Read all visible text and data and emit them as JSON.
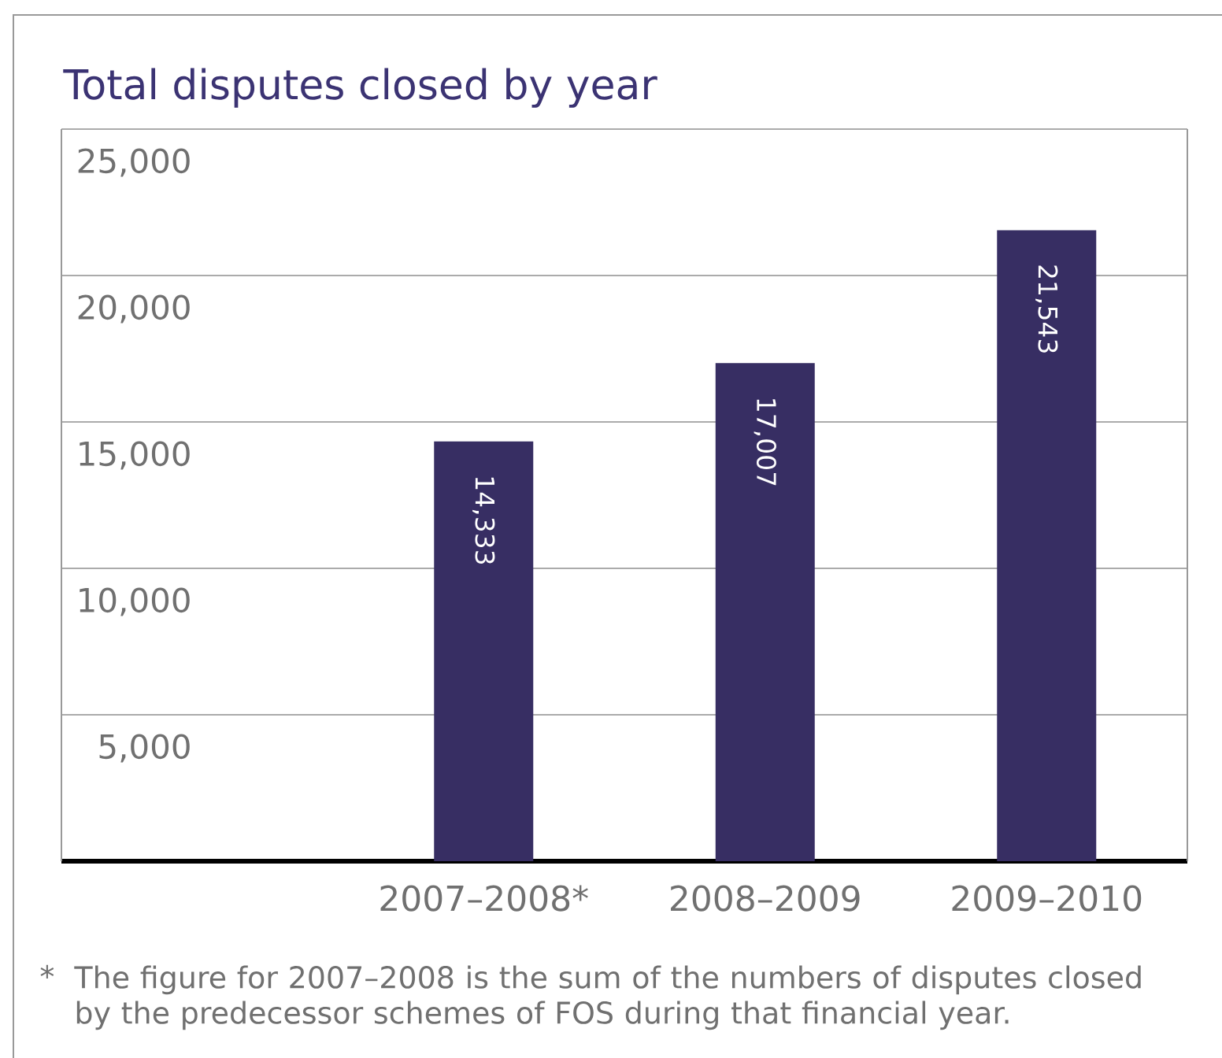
{
  "chart_data": {
    "type": "bar",
    "title": "Total disputes closed by year",
    "categories": [
      "2007–2008*",
      "2008–2009",
      "2009–2010"
    ],
    "values": [
      14333,
      17007,
      21543
    ],
    "value_labels": [
      "14,333",
      "17,007",
      "21,543"
    ],
    "color": "#372e63",
    "ylim": [
      0,
      25000
    ],
    "yticks": [
      {
        "value": 5000,
        "label": "5,000"
      },
      {
        "value": 10000,
        "label": "10,000"
      },
      {
        "value": 15000,
        "label": "15,000"
      },
      {
        "value": 20000,
        "label": "20,000"
      },
      {
        "value": 25000,
        "label": "25,000"
      }
    ],
    "grid": "y",
    "annotations": [
      "*",
      "The figure for 2007–2008 is the sum of the numbers of disputes closed by the predecessor schemes of FOS during that financial year."
    ]
  }
}
